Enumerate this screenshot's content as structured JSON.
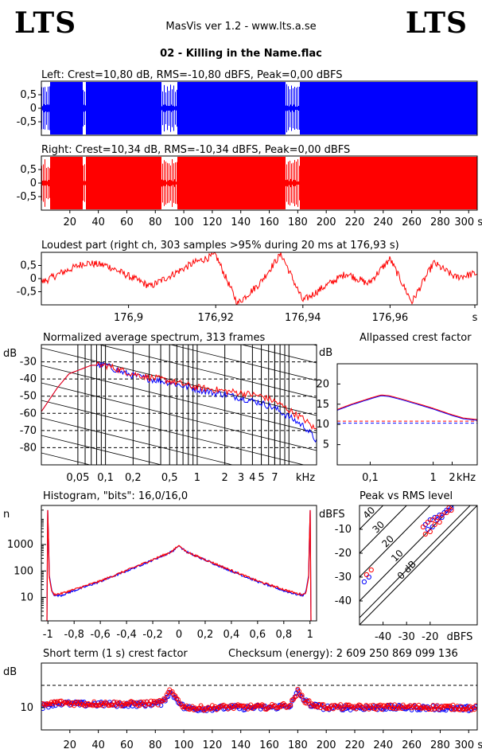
{
  "header": {
    "logo_left": "LTS",
    "logo_right": "LTS",
    "app_title": "MasVis ver 1.2 - www.lts.a.se",
    "track_title": "02 - Killing in the Name.flac"
  },
  "colors": {
    "left": "#0000ff",
    "right": "#ff0000",
    "grid": "#000000"
  },
  "chart_data": [
    {
      "id": "left-waveform",
      "type": "area",
      "title": "Left: Crest=10,80 dB, RMS=-10,80 dBFS, Peak=0,00 dBFS",
      "x_range": [
        0,
        306
      ],
      "ylim": [
        -1,
        1
      ],
      "y_ticks": [
        0.5,
        0,
        -0.5
      ],
      "y_tick_labels": [
        "0,5",
        "0",
        "-0,5"
      ],
      "quiet_sections_s": [
        [
          0,
          6
        ],
        [
          29,
          31
        ],
        [
          84,
          95
        ],
        [
          171,
          181
        ]
      ],
      "color": "#0000ff"
    },
    {
      "id": "right-waveform",
      "type": "area",
      "title": "Right: Crest=10,34 dB, RMS=-10,34 dBFS, Peak=0,00 dBFS",
      "x_range": [
        0,
        306
      ],
      "ylim": [
        -1,
        1
      ],
      "y_ticks": [
        0.5,
        0,
        -0.5
      ],
      "y_tick_labels": [
        "0,5",
        "0",
        "-0,5"
      ],
      "x_ticks": [
        20,
        40,
        60,
        80,
        100,
        120,
        140,
        160,
        180,
        200,
        220,
        240,
        260,
        280,
        300
      ],
      "x_tick_labels": [
        "20",
        "40",
        "60",
        "80",
        "100",
        "120",
        "140",
        "160",
        "180",
        "200",
        "220",
        "240",
        "260",
        "280",
        "300 s"
      ],
      "quiet_sections_s": [
        [
          0,
          6
        ],
        [
          29,
          31
        ],
        [
          84,
          95
        ],
        [
          171,
          181
        ]
      ],
      "color": "#ff0000"
    },
    {
      "id": "loudest-part",
      "type": "line",
      "title": "Loudest part (right ch, 303 samples >95% during 20 ms at 176,93 s)",
      "x_range": [
        176.88,
        176.98
      ],
      "ylim": [
        -1,
        1
      ],
      "y_ticks": [
        0.5,
        0,
        -0.5
      ],
      "y_tick_labels": [
        "0,5",
        "0",
        "-0,5"
      ],
      "x_ticks": [
        176.9,
        176.92,
        176.94,
        176.96,
        176.98
      ],
      "x_tick_labels": [
        "176,9",
        "176,92",
        "176,94",
        "176,96",
        "s"
      ],
      "envelope": {
        "x": [
          176.88,
          176.885,
          176.89,
          176.895,
          176.9,
          176.905,
          176.91,
          176.915,
          176.92,
          176.925,
          176.93,
          176.935,
          176.94,
          176.945,
          176.95,
          176.955,
          176.96,
          176.965,
          176.97,
          176.975,
          176.98
        ],
        "y": [
          -0.15,
          0.25,
          0.6,
          0.5,
          0.1,
          -0.3,
          0.15,
          0.6,
          0.9,
          -0.95,
          -0.2,
          0.95,
          -0.85,
          -0.3,
          0.2,
          -0.2,
          0.75,
          -0.9,
          0.6,
          0.05,
          0.2
        ]
      },
      "color": "#ff0000"
    },
    {
      "id": "average-spectrum",
      "type": "line",
      "title": "Normalized average spectrum, 313 frames",
      "ylabel": "dB",
      "xlabel": "kHz",
      "x_scale": "log",
      "x_range": [
        0.02,
        20
      ],
      "ylim": [
        -90,
        -20
      ],
      "y_ticks": [
        -30,
        -40,
        -50,
        -60,
        -70,
        -80
      ],
      "x_ticks": [
        0.05,
        0.1,
        0.2,
        0.5,
        1,
        2,
        3,
        4,
        5,
        7
      ],
      "x_tick_labels": [
        "0,05",
        "0,1",
        "0,2",
        "0,5",
        "1",
        "2",
        "3",
        "4",
        "5",
        "7"
      ],
      "x": [
        0.02,
        0.03,
        0.04,
        0.05,
        0.07,
        0.1,
        0.15,
        0.2,
        0.3,
        0.5,
        0.7,
        1,
        1.5,
        2,
        3,
        5,
        7,
        10,
        15,
        20
      ],
      "series": [
        {
          "color": "#0000ff",
          "values": [
            -59,
            -45,
            -37,
            -35,
            -32,
            -32,
            -36,
            -38,
            -40,
            -42,
            -44,
            -46,
            -48,
            -49,
            -51,
            -54,
            -57,
            -62,
            -68,
            -76
          ]
        },
        {
          "color": "#ff0000",
          "values": [
            -59,
            -45,
            -37,
            -35,
            -32,
            -32,
            -35,
            -37,
            -39,
            -41,
            -43,
            -45,
            -46,
            -47,
            -48,
            -50,
            -53,
            -58,
            -64,
            -70
          ]
        }
      ]
    },
    {
      "id": "allpassed-crest",
      "type": "line",
      "title": "Allpassed crest factor",
      "ylabel": "dB",
      "xlabel": "kHz",
      "x_scale": "log",
      "x_range": [
        0.03,
        5
      ],
      "ylim": [
        0,
        25
      ],
      "y_ticks": [
        20,
        15,
        10,
        5
      ],
      "x_ticks": [
        0.1,
        1,
        2
      ],
      "x_tick_labels": [
        "0,1",
        "1",
        "2"
      ],
      "reference_lines": [
        10.8,
        10.3
      ],
      "x": [
        0.03,
        0.05,
        0.1,
        0.15,
        0.2,
        0.3,
        0.5,
        1,
        2,
        3,
        5
      ],
      "series": [
        {
          "color": "#0000ff",
          "values": [
            13.5,
            14.8,
            16.3,
            17.1,
            16.9,
            16.2,
            15.2,
            13.8,
            12.2,
            11.4,
            11.0
          ]
        },
        {
          "color": "#ff0000",
          "values": [
            13.7,
            15.0,
            16.5,
            17.3,
            17.1,
            16.4,
            15.4,
            14.0,
            12.4,
            11.6,
            11.2
          ]
        }
      ]
    },
    {
      "id": "histogram",
      "type": "line",
      "title": "Histogram, \"bits\": 16,0/16,0",
      "ylabel": "n",
      "y_scale": "log",
      "x_range": [
        -1.05,
        1.05
      ],
      "ylim": [
        1.3,
        30000
      ],
      "y_ticks": [
        1000,
        100,
        10
      ],
      "x_ticks": [
        -1,
        -0.8,
        -0.6,
        -0.4,
        -0.2,
        0,
        0.2,
        0.4,
        0.6,
        0.8,
        1
      ],
      "x_tick_labels": [
        "-1",
        "-0,8",
        "-0,6",
        "-0,4",
        "-0,2",
        "0",
        "0,2",
        "0,4",
        "0,6",
        "0,8",
        "1"
      ],
      "x": [
        -1,
        -0.99,
        -0.97,
        -0.95,
        -0.9,
        -0.8,
        -0.6,
        -0.4,
        -0.2,
        -0.1,
        -0.05,
        0,
        0.05,
        0.1,
        0.2,
        0.4,
        0.6,
        0.8,
        0.9,
        0.95,
        0.97,
        0.99,
        1
      ],
      "series": [
        {
          "color": "#0000ff",
          "values": [
            20000,
            70,
            18,
            12,
            12,
            18,
            40,
            100,
            260,
            420,
            560,
            900,
            560,
            420,
            260,
            100,
            40,
            18,
            13,
            12,
            18,
            70,
            20000
          ]
        },
        {
          "color": "#ff0000",
          "values": [
            20000,
            60,
            16,
            13,
            14,
            20,
            42,
            105,
            270,
            430,
            570,
            920,
            570,
            430,
            270,
            105,
            42,
            20,
            14,
            13,
            16,
            60,
            20000
          ]
        }
      ]
    },
    {
      "id": "peak-vs-rms",
      "type": "scatter",
      "title": "Peak vs RMS level",
      "ylabel": "dBFS",
      "xlabel": "dBFS",
      "x_range": [
        -50,
        0
      ],
      "ylim": [
        -50,
        0
      ],
      "x_ticks": [
        -40,
        -30,
        -20
      ],
      "y_ticks": [
        -10,
        -20,
        -30,
        -40
      ],
      "crest_lines": [
        {
          "crest": 40,
          "label": "40"
        },
        {
          "crest": 30,
          "label": "30"
        },
        {
          "crest": 20,
          "label": "20"
        },
        {
          "crest": 10,
          "label": "10"
        },
        {
          "crest": 0,
          "label": "0 dB"
        }
      ],
      "series": [
        {
          "color": "#0000ff",
          "points": [
            [
              -48,
              -32
            ],
            [
              -46,
              -30
            ],
            [
              -22,
              -8
            ],
            [
              -20,
              -6
            ],
            [
              -18,
              -5
            ],
            [
              -16,
              -4
            ],
            [
              -14,
              -3
            ],
            [
              -13,
              -2
            ],
            [
              -12,
              -2
            ],
            [
              -11,
              -1
            ],
            [
              -17,
              -6
            ],
            [
              -15,
              -5
            ],
            [
              -19,
              -9
            ],
            [
              -21,
              -10
            ]
          ]
        },
        {
          "color": "#ff0000",
          "points": [
            [
              -47,
              -29
            ],
            [
              -45,
              -27
            ],
            [
              -23,
              -9
            ],
            [
              -21,
              -7
            ],
            [
              -19,
              -6
            ],
            [
              -17,
              -5
            ],
            [
              -15,
              -4
            ],
            [
              -13,
              -3
            ],
            [
              -12,
              -1
            ],
            [
              -11,
              -2
            ],
            [
              -18,
              -8
            ],
            [
              -16,
              -7
            ],
            [
              -20,
              -11
            ],
            [
              -22,
              -12
            ]
          ]
        }
      ]
    },
    {
      "id": "short-term-crest",
      "type": "scatter",
      "title": "Short term (1 s) crest factor",
      "annotation": "Checksum (energy):  2 609 250 869 099 136",
      "ylabel": "dB",
      "x_range": [
        0,
        306
      ],
      "ylim": [
        0,
        30
      ],
      "y_ticks": [
        10
      ],
      "reference_line": 20,
      "x_ticks": [
        20,
        40,
        60,
        80,
        100,
        120,
        140,
        160,
        180,
        200,
        220,
        240,
        260,
        280,
        300
      ],
      "x_tick_labels": [
        "20",
        "40",
        "60",
        "80",
        "100",
        "120",
        "140",
        "160",
        "180",
        "200",
        "220",
        "240",
        "260",
        "280",
        "300 s"
      ],
      "trend": {
        "x": [
          0,
          10,
          30,
          50,
          70,
          85,
          90,
          95,
          100,
          110,
          130,
          160,
          175,
          180,
          185,
          190,
          200,
          230,
          260,
          290,
          305
        ],
        "y": [
          10.5,
          12,
          11.5,
          11.5,
          11.5,
          12,
          17,
          14,
          10,
          9.5,
          10,
          10,
          11,
          17,
          13,
          11,
          10,
          10,
          10,
          9.8,
          9.6
        ]
      },
      "series": [
        {
          "color": "#0000ff"
        },
        {
          "color": "#ff0000"
        }
      ]
    }
  ]
}
